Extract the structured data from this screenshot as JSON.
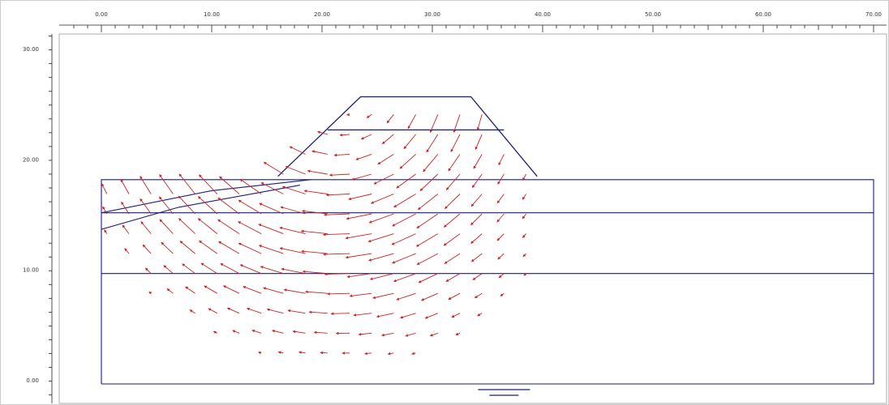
{
  "chart_data": {
    "type": "diagram",
    "title": "",
    "xlabel": "",
    "ylabel": "",
    "x_ticks": [
      "0.00",
      "10.00",
      "20.00",
      "30.00",
      "40.00",
      "50.00",
      "60.00",
      "70.00"
    ],
    "y_ticks": [
      "30.00",
      "20.00",
      "10.00",
      "0.00"
    ],
    "x_range": [
      -2.5,
      72.5
    ],
    "y_range": [
      -1.0,
      32.0
    ],
    "colors": {
      "geometry": "#1a1a7a",
      "vectors": "#cc2222",
      "ruler": "#222222",
      "frame": "#cccccc"
    },
    "boundary_polyline": [
      [
        0,
        0
      ],
      [
        70,
        0
      ],
      [
        70,
        18.5
      ],
      [
        0,
        18.5
      ],
      [
        0,
        0
      ]
    ],
    "layer_lines": [
      [
        [
          0,
          10.0
        ],
        [
          45,
          10.0
        ],
        [
          70,
          10.0
        ]
      ],
      [
        [
          0,
          15.5
        ],
        [
          70,
          15.5
        ]
      ]
    ],
    "embankment_polyline": [
      [
        16,
        18.8
      ],
      [
        23.5,
        26.0
      ],
      [
        33.5,
        26.0
      ],
      [
        39.5,
        18.8
      ]
    ],
    "embankment_berm": [
      [
        20.5,
        23.0
      ],
      [
        36.5,
        23.0
      ]
    ],
    "wedge_lines": [
      [
        [
          0,
          15.5
        ],
        [
          10,
          17.5
        ],
        [
          19,
          18.5
        ]
      ],
      [
        [
          0,
          14.0
        ],
        [
          7,
          16.0
        ],
        [
          18,
          18.0
        ]
      ]
    ],
    "water_symbol_x": 36.5
  }
}
